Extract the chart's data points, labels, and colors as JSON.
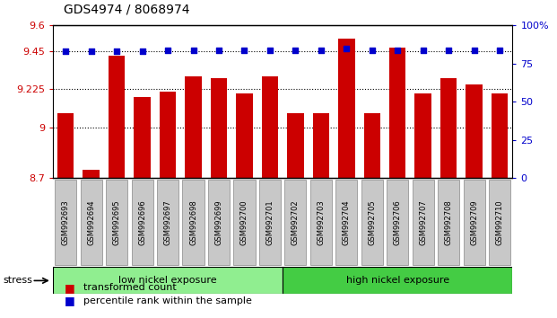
{
  "title": "GDS4974 / 8068974",
  "categories": [
    "GSM992693",
    "GSM992694",
    "GSM992695",
    "GSM992696",
    "GSM992697",
    "GSM992698",
    "GSM992699",
    "GSM992700",
    "GSM992701",
    "GSM992702",
    "GSM992703",
    "GSM992704",
    "GSM992705",
    "GSM992706",
    "GSM992707",
    "GSM992708",
    "GSM992709",
    "GSM992710"
  ],
  "bar_values": [
    9.08,
    8.75,
    9.42,
    9.18,
    9.21,
    9.3,
    9.29,
    9.2,
    9.3,
    9.08,
    9.08,
    9.52,
    9.08,
    9.47,
    9.2,
    9.29,
    9.25,
    9.2
  ],
  "percentile_values": [
    83,
    83,
    83,
    83,
    84,
    84,
    84,
    84,
    84,
    84,
    84,
    85,
    84,
    84,
    84,
    84,
    84,
    84
  ],
  "bar_color": "#cc0000",
  "dot_color": "#0000cc",
  "ylim_left": [
    8.7,
    9.6
  ],
  "ylim_right": [
    0,
    100
  ],
  "yticks_left": [
    8.7,
    9.0,
    9.225,
    9.45,
    9.6
  ],
  "ytick_labels_left": [
    "8.7",
    "9",
    "9.225",
    "9.45",
    "9.6"
  ],
  "yticks_right": [
    0,
    25,
    50,
    75,
    100
  ],
  "ytick_labels_right": [
    "0",
    "25",
    "50",
    "75",
    "100%"
  ],
  "hlines": [
    9.0,
    9.225,
    9.45
  ],
  "low_nickel_count": 9,
  "high_nickel_count": 9,
  "group_labels": [
    "low nickel exposure",
    "high nickel exposure"
  ],
  "low_color": "#90ee90",
  "high_color": "#44cc44",
  "stress_label": "stress",
  "legend_bar_label": "transformed count",
  "legend_dot_label": "percentile rank within the sample",
  "bg_color": "#ffffff",
  "plot_bg": "#ffffff",
  "tick_label_color_left": "#cc0000",
  "tick_label_color_right": "#0000cc",
  "xtick_bg": "#c8c8c8",
  "xtick_border": "#888888"
}
